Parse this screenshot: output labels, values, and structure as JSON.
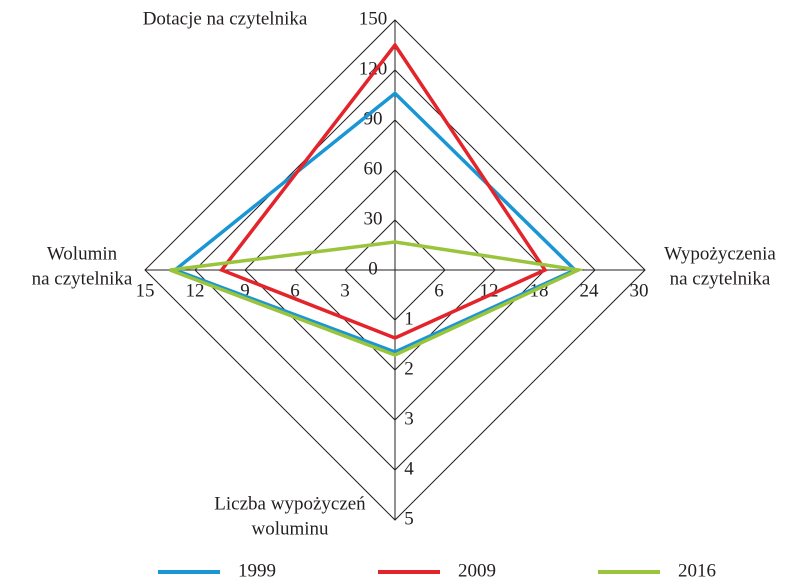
{
  "chart_data": {
    "type": "radar",
    "axes": [
      {
        "name": [
          "Dotacje na czytelnika"
        ],
        "lim": [
          0,
          150
        ],
        "ticks": [
          0,
          30,
          60,
          90,
          120,
          150
        ]
      },
      {
        "name": [
          "Wypożyczenia",
          "na czytelnika"
        ],
        "lim": [
          0,
          30
        ],
        "ticks": [
          6,
          12,
          18,
          24,
          30
        ]
      },
      {
        "name": [
          "Liczba wypożyczeń",
          "woluminu"
        ],
        "lim": [
          0,
          5
        ],
        "ticks": [
          1,
          2,
          3,
          4,
          5
        ]
      },
      {
        "name": [
          "Wolumin",
          "na czytelnika"
        ],
        "lim": [
          0,
          15
        ],
        "ticks": [
          3,
          6,
          9,
          12,
          15
        ]
      }
    ],
    "series": [
      {
        "name": "1999",
        "color": "#1a96d4",
        "values": [
          106,
          21.6,
          1.64,
          13.2
        ]
      },
      {
        "name": "2009",
        "color": "#e3242b",
        "values": [
          135,
          18,
          1.36,
          10.4
        ]
      },
      {
        "name": "2016",
        "color": "#9ac43c",
        "values": [
          16.8,
          22,
          1.7,
          13.5
        ]
      }
    ]
  }
}
